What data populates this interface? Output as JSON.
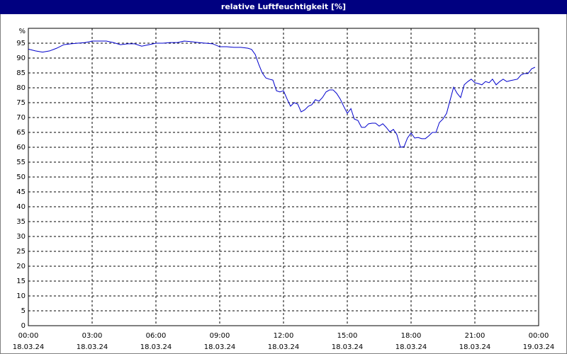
{
  "chart_data": {
    "type": "line",
    "title": "relative Luftfeuchtigkeit [%]",
    "x": [
      0,
      0.33,
      0.67,
      1,
      1.33,
      1.67,
      2,
      2.33,
      2.67,
      3,
      3.33,
      3.67,
      4,
      4.33,
      4.67,
      5,
      5.33,
      5.67,
      6,
      6.33,
      6.67,
      7,
      7.33,
      7.67,
      8,
      8.33,
      8.67,
      9,
      9.33,
      9.67,
      10,
      10.33,
      10.5,
      10.67,
      10.83,
      11,
      11.17,
      11.33,
      11.5,
      11.67,
      11.83,
      12,
      12.17,
      12.33,
      12.5,
      12.67,
      12.83,
      13,
      13.17,
      13.33,
      13.5,
      13.67,
      13.83,
      14,
      14.17,
      14.33,
      14.5,
      14.67,
      14.83,
      15,
      15.17,
      15.33,
      15.5,
      15.67,
      15.83,
      16,
      16.17,
      16.33,
      16.5,
      16.67,
      16.83,
      17,
      17.17,
      17.33,
      17.5,
      17.67,
      17.83,
      18,
      18.17,
      18.33,
      18.5,
      18.67,
      18.83,
      19,
      19.17,
      19.33,
      19.5,
      19.67,
      19.83,
      20,
      20.17,
      20.33,
      20.5,
      20.67,
      20.83,
      21,
      21.17,
      21.33,
      21.5,
      21.67,
      21.83,
      22,
      22.17,
      22.33,
      22.5,
      22.67,
      23,
      23.17,
      23.33,
      23.5,
      23.67,
      23.83
    ],
    "series": [
      {
        "color": "#0000cc",
        "values": [
          93,
          92.4,
          92,
          92.4,
          93.3,
          94.5,
          94.8,
          95,
          95.2,
          95.7,
          95.7,
          95.7,
          95.2,
          94.5,
          94.8,
          94.8,
          94,
          94.5,
          95,
          95,
          95.2,
          95.2,
          95.7,
          95.5,
          95.2,
          95,
          94.8,
          93.8,
          93.8,
          93.6,
          93.6,
          93.3,
          92.9,
          91.2,
          88,
          85,
          83.3,
          82.9,
          82.6,
          79,
          78.6,
          79,
          76.2,
          73.8,
          75,
          74.5,
          71.9,
          72.6,
          73.8,
          74.3,
          76,
          75.5,
          76.7,
          78.6,
          79.3,
          79.3,
          78.1,
          76.2,
          73.8,
          71.4,
          73,
          69.5,
          69,
          66.7,
          66.7,
          67.9,
          68.1,
          68.1,
          67.1,
          67.9,
          66.7,
          65.2,
          66,
          64.3,
          60,
          60.2,
          63.1,
          64.8,
          63.1,
          63.3,
          62.9,
          62.9,
          63.8,
          65,
          65,
          68.3,
          69.5,
          71.4,
          75.7,
          80.2,
          78.1,
          76.7,
          81,
          82.1,
          82.9,
          81.7,
          81.4,
          81,
          82.1,
          81.7,
          82.9,
          81,
          82.1,
          82.9,
          82.1,
          82.4,
          82.9,
          84.3,
          84.8,
          84.8,
          86.4,
          86.9
        ]
      }
    ],
    "xlim": [
      0,
      24
    ],
    "xticks": [
      {
        "value": 0,
        "label": "00:00"
      },
      {
        "value": 3,
        "label": "03:00"
      },
      {
        "value": 6,
        "label": "06:00"
      },
      {
        "value": 9,
        "label": "09:00"
      },
      {
        "value": 12,
        "label": "12:00"
      },
      {
        "value": 15,
        "label": "15:00"
      },
      {
        "value": 18,
        "label": "18:00"
      },
      {
        "value": 21,
        "label": "21:00"
      },
      {
        "value": 24,
        "label": "00:00"
      }
    ],
    "xtick_dates": [
      "18.03.24",
      "18.03.24",
      "18.03.24",
      "18.03.24",
      "18.03.24",
      "18.03.24",
      "18.03.24",
      "18.03.24",
      "19.03.24"
    ],
    "ylim": [
      0,
      100
    ],
    "yticks": [
      0,
      5,
      10,
      15,
      20,
      25,
      30,
      35,
      40,
      45,
      50,
      55,
      60,
      65,
      70,
      75,
      80,
      85,
      90,
      95,
      {
        "value": 100,
        "label": "%"
      }
    ],
    "grid": true
  }
}
